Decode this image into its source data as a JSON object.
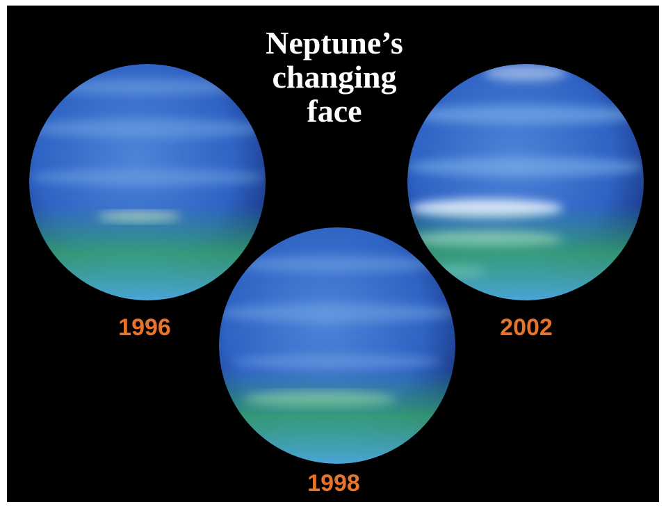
{
  "title": {
    "lines": [
      "Neptune’s",
      "changing",
      "face"
    ]
  },
  "images": [
    {
      "label": "1996"
    },
    {
      "label": "1998"
    },
    {
      "label": "2002"
    }
  ]
}
